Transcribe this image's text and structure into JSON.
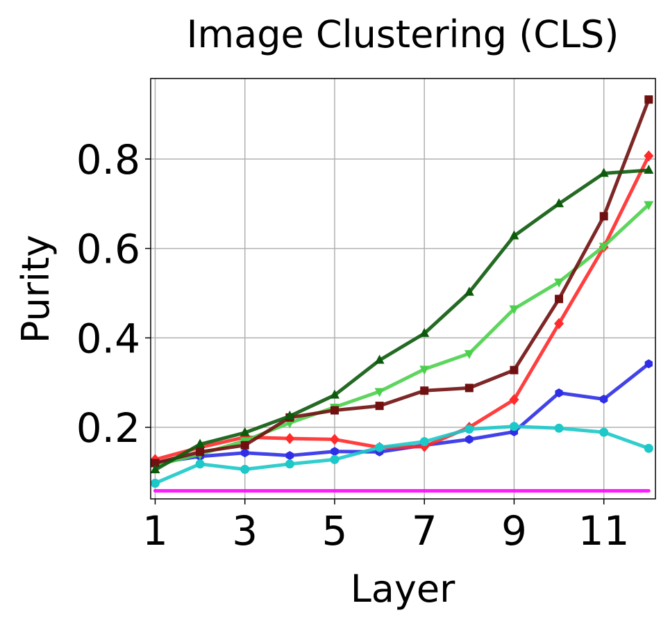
{
  "chart_data": {
    "type": "line",
    "title": "Image Clustering (CLS)",
    "xlabel": "Layer",
    "ylabel": "Purity",
    "xlim": [
      0.9,
      12.15
    ],
    "ylim": [
      0.04,
      0.98
    ],
    "xticks": [
      1,
      3,
      5,
      7,
      9,
      11
    ],
    "yticks": [
      0.2,
      0.4,
      0.6,
      0.8
    ],
    "ytick_labels": [
      "0.2",
      "0.4",
      "0.6",
      "0.8"
    ],
    "grid": true,
    "x": [
      1,
      2,
      3,
      4,
      5,
      6,
      7,
      8,
      9,
      10,
      11,
      12
    ],
    "series": [
      {
        "color": "#ff00ff",
        "marker": "none",
        "values": [
          0.058,
          0.058,
          0.058,
          0.058,
          0.058,
          0.058,
          0.058,
          0.058,
          0.058,
          0.058,
          0.058,
          0.058
        ]
      },
      {
        "color": "#2e2ee6",
        "marker": "hexagon",
        "values": [
          0.12,
          0.135,
          0.143,
          0.137,
          0.146,
          0.145,
          0.16,
          0.173,
          0.19,
          0.277,
          0.263,
          0.342
        ]
      },
      {
        "color": "#ff2a2a",
        "marker": "diamond",
        "values": [
          0.128,
          0.155,
          0.178,
          0.175,
          0.173,
          0.155,
          0.157,
          0.2,
          0.262,
          0.432,
          0.603,
          0.807
        ]
      },
      {
        "color": "#1cc8c8",
        "marker": "circle",
        "values": [
          0.075,
          0.118,
          0.106,
          0.118,
          0.128,
          0.155,
          0.168,
          0.196,
          0.202,
          0.198,
          0.189,
          0.153
        ]
      },
      {
        "color": "#4cd04c",
        "marker": "triangle-down",
        "values": [
          0.115,
          0.14,
          0.17,
          0.21,
          0.245,
          0.28,
          0.33,
          0.365,
          0.465,
          0.525,
          0.605,
          0.698
        ]
      },
      {
        "color": "#701010",
        "marker": "square",
        "values": [
          0.12,
          0.145,
          0.16,
          0.222,
          0.238,
          0.248,
          0.282,
          0.288,
          0.328,
          0.487,
          0.672,
          0.933
        ]
      },
      {
        "color": "#0c5a0c",
        "marker": "triangle-up",
        "values": [
          0.105,
          0.162,
          0.188,
          0.225,
          0.272,
          0.35,
          0.41,
          0.502,
          0.628,
          0.7,
          0.768,
          0.775
        ]
      }
    ]
  }
}
